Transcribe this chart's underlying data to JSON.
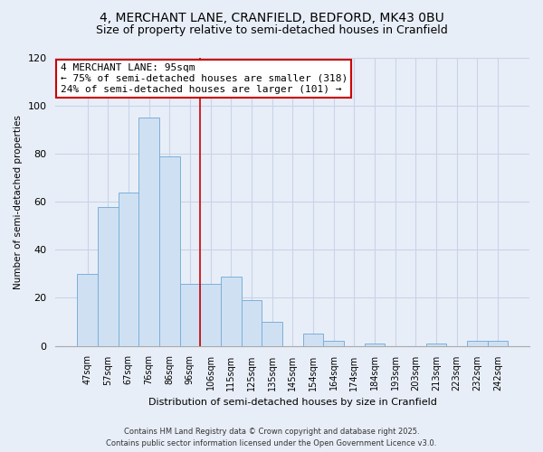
{
  "title": "4, MERCHANT LANE, CRANFIELD, BEDFORD, MK43 0BU",
  "subtitle": "Size of property relative to semi-detached houses in Cranfield",
  "xlabel": "Distribution of semi-detached houses by size in Cranfield",
  "ylabel": "Number of semi-detached properties",
  "bin_labels": [
    "47sqm",
    "57sqm",
    "67sqm",
    "76sqm",
    "86sqm",
    "96sqm",
    "106sqm",
    "115sqm",
    "125sqm",
    "135sqm",
    "145sqm",
    "154sqm",
    "164sqm",
    "174sqm",
    "184sqm",
    "193sqm",
    "203sqm",
    "213sqm",
    "223sqm",
    "232sqm",
    "242sqm"
  ],
  "values": [
    30,
    58,
    64,
    95,
    79,
    26,
    26,
    29,
    19,
    10,
    0,
    5,
    2,
    0,
    1,
    0,
    0,
    1,
    0,
    2,
    2
  ],
  "bar_color": "#cfe0f3",
  "bar_edge_color": "#7ab0d8",
  "vline_x_idx": 5,
  "vline_color": "#cc0000",
  "annotation_text": "4 MERCHANT LANE: 95sqm\n← 75% of semi-detached houses are smaller (318)\n24% of semi-detached houses are larger (101) →",
  "annotation_box_color": "#ffffff",
  "annotation_box_edge": "#cc0000",
  "ylim": [
    0,
    120
  ],
  "yticks": [
    0,
    20,
    40,
    60,
    80,
    100,
    120
  ],
  "footer_line1": "Contains HM Land Registry data © Crown copyright and database right 2025.",
  "footer_line2": "Contains public sector information licensed under the Open Government Licence v3.0.",
  "bg_color": "#e8eef8",
  "grid_color": "#c8d4e8",
  "title_fontsize": 10,
  "subtitle_fontsize": 9
}
